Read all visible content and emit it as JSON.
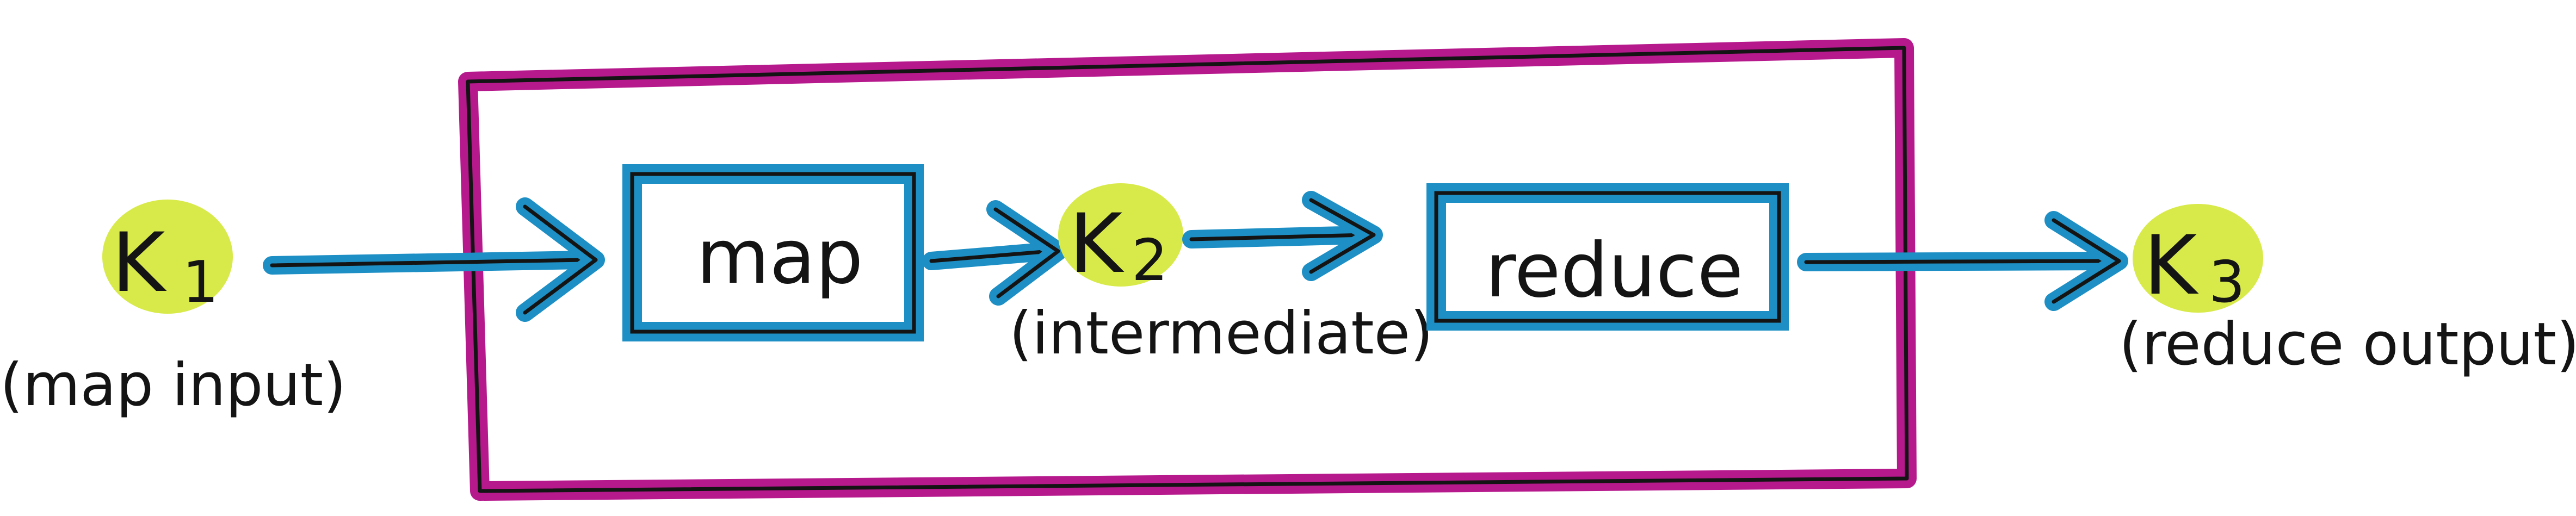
{
  "diagram": {
    "input_key": {
      "letter": "K",
      "subscript": "1",
      "caption": "(map input)"
    },
    "intermediate_key": {
      "letter": "K",
      "subscript": "2",
      "caption": "(intermediate)"
    },
    "output_key": {
      "letter": "K",
      "subscript": "3",
      "caption": "(reduce output)"
    },
    "map_box": {
      "label": "map"
    },
    "reduce_box": {
      "label": "reduce"
    },
    "colors": {
      "container_outline": "#b5198c",
      "box_outline": "#1d8fc4",
      "arrow": "#1d8fc4",
      "key_highlight": "#d8ea4a",
      "ink": "#141414"
    }
  }
}
